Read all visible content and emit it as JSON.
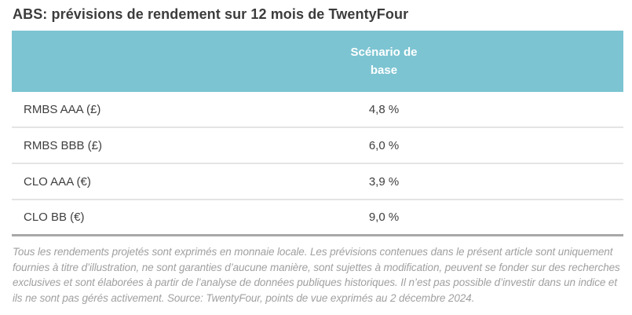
{
  "title": "ABS: prévisions de rendement sur 12 mois de TwentyFour",
  "table": {
    "header": "Scénario de base",
    "rows": [
      {
        "label": "RMBS AAA (£)",
        "value": "4,8 %"
      },
      {
        "label": "RMBS BBB (£)",
        "value": "6,0 %"
      },
      {
        "label": "CLO AAA (€)",
        "value": "3,9 %"
      },
      {
        "label": "CLO BB (€)",
        "value": "9,0 %"
      }
    ]
  },
  "footnote": "Tous les rendements projetés sont exprimés en monnaie locale. Les prévisions contenues dans le présent article sont uniquement fournies à titre d’illustration, ne sont garanties d’aucune manière, sont sujettes à modification, peuvent se fonder sur des recherches exclusives et sont élaborées à partir de l’analyse de données publiques historiques. Il n’est pas possible d’investir dans un indice et ils ne sont pas gérés activement. Source: TwentyFour, points de vue exprimés au 2 décembre 2024.",
  "colors": {
    "header_bg": "#7cc4d2",
    "header_text": "#ffffff",
    "row_divider": "#e4e4e4",
    "table_bottom_border": "#a8a8a8",
    "title_text": "#3c3c3c",
    "body_text": "#3f3f3f",
    "footnote_text": "#a0a0a0"
  },
  "chart_data": {
    "type": "table",
    "title": "ABS: prévisions de rendement sur 12 mois de TwentyFour",
    "columns": [
      "",
      "Scénario de base"
    ],
    "categories": [
      "RMBS AAA (£)",
      "RMBS BBB (£)",
      "CLO AAA (€)",
      "CLO BB (€)"
    ],
    "values": [
      4.8,
      6.0,
      3.9,
      9.0
    ],
    "value_unit": "%",
    "value_labels": [
      "4,8 %",
      "6,0 %",
      "3,9 %",
      "9,0 %"
    ],
    "source_note": "Source: TwentyFour, points de vue exprimés au 2 décembre 2024."
  }
}
